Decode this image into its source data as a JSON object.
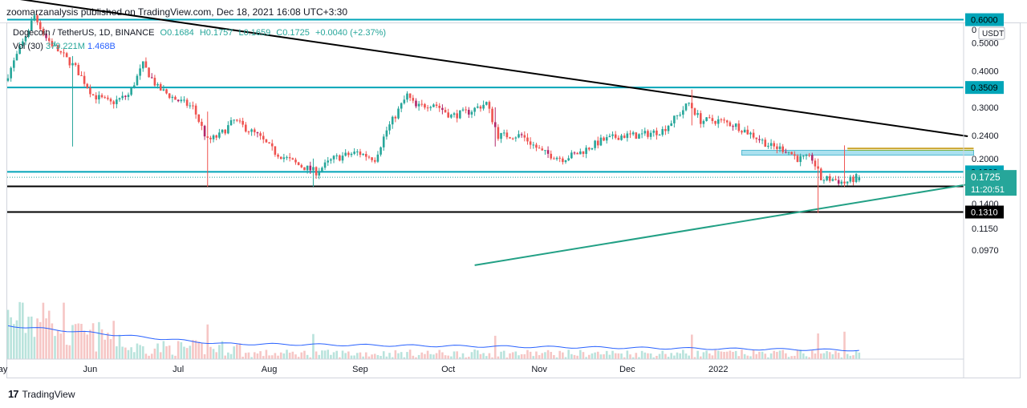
{
  "header": {
    "publisher": "zoomarzanalysis published on TradingView.com, Dec 18, 2021 16:08 UTC+3:30"
  },
  "symbol": {
    "name": "Dogecoin / TetherUS, 1D, BINANCE",
    "open": "O0.1684",
    "high": "H0.1757",
    "low": "L0.1659",
    "close": "C0.1725",
    "change": "+0.0040 (+2.37%)"
  },
  "volume": {
    "label": "Vol (30)",
    "value": "379.221M",
    "ma": "1.468B"
  },
  "footer": {
    "logo": "TradingView"
  },
  "price_scale": {
    "currency": "USDT",
    "top_label": "0",
    "ticks": [
      "0.5000",
      "0.4000",
      "0.3000",
      "0.2400",
      "0.2000",
      "0.1400",
      "0.1150",
      "0.0970"
    ],
    "level_labels": [
      {
        "text": "0.6000",
        "value": 0.6
      },
      {
        "text": "0.3509",
        "value": 0.3509
      },
      {
        "text": "0.1800",
        "value": 0.18
      }
    ],
    "support_label": {
      "text": "0.1310",
      "value": 0.131
    },
    "last_price": {
      "price": "0.1725",
      "countdown": "11:20:51"
    }
  },
  "colors": {
    "up": "#26a69a",
    "down": "#ef5350",
    "down_dark": "#b2276a",
    "teal": "#00a5b8",
    "black": "#000000",
    "green_line": "#22a085",
    "zone": "#8fd8ea",
    "volume_ma": "#2962ff"
  },
  "chart_data": {
    "type": "candlestick",
    "title": "Dogecoin / TetherUS, 1D, BINANCE",
    "x_axis_labels": [
      "May",
      "Jun",
      "Jul",
      "Aug",
      "Sep",
      "Oct",
      "Nov",
      "Dec",
      "2022"
    ],
    "y_scale": "log",
    "y_range": [
      0.086,
      0.9
    ],
    "last": {
      "open": 0.1684,
      "high": 0.1757,
      "low": 0.1659,
      "close": 0.1725
    },
    "anchors": [
      {
        "d": 0,
        "p": 0.37
      },
      {
        "d": 6,
        "p": 0.5
      },
      {
        "d": 10,
        "p": 0.62
      },
      {
        "d": 14,
        "p": 0.52
      },
      {
        "d": 18,
        "p": 0.47
      },
      {
        "d": 24,
        "p": 0.41
      },
      {
        "d": 30,
        "p": 0.33
      },
      {
        "d": 36,
        "p": 0.31
      },
      {
        "d": 42,
        "p": 0.33
      },
      {
        "d": 47,
        "p": 0.42
      },
      {
        "d": 52,
        "p": 0.35
      },
      {
        "d": 58,
        "p": 0.32
      },
      {
        "d": 64,
        "p": 0.3
      },
      {
        "d": 69,
        "p": 0.23
      },
      {
        "d": 73,
        "p": 0.24
      },
      {
        "d": 78,
        "p": 0.27
      },
      {
        "d": 86,
        "p": 0.24
      },
      {
        "d": 92,
        "p": 0.21
      },
      {
        "d": 100,
        "p": 0.19
      },
      {
        "d": 106,
        "p": 0.18
      },
      {
        "d": 112,
        "p": 0.2
      },
      {
        "d": 120,
        "p": 0.21
      },
      {
        "d": 126,
        "p": 0.2
      },
      {
        "d": 130,
        "p": 0.25
      },
      {
        "d": 137,
        "p": 0.33
      },
      {
        "d": 140,
        "p": 0.3
      },
      {
        "d": 146,
        "p": 0.31
      },
      {
        "d": 152,
        "p": 0.28
      },
      {
        "d": 158,
        "p": 0.29
      },
      {
        "d": 164,
        "p": 0.31
      },
      {
        "d": 168,
        "p": 0.24
      },
      {
        "d": 176,
        "p": 0.24
      },
      {
        "d": 183,
        "p": 0.21
      },
      {
        "d": 190,
        "p": 0.2
      },
      {
        "d": 196,
        "p": 0.21
      },
      {
        "d": 203,
        "p": 0.23
      },
      {
        "d": 210,
        "p": 0.24
      },
      {
        "d": 216,
        "p": 0.24
      },
      {
        "d": 224,
        "p": 0.25
      },
      {
        "d": 229,
        "p": 0.28
      },
      {
        "d": 233,
        "p": 0.31
      },
      {
        "d": 237,
        "p": 0.27
      },
      {
        "d": 243,
        "p": 0.27
      },
      {
        "d": 249,
        "p": 0.26
      },
      {
        "d": 255,
        "p": 0.24
      },
      {
        "d": 261,
        "p": 0.22
      },
      {
        "d": 266,
        "p": 0.215
      },
      {
        "d": 270,
        "p": 0.2
      },
      {
        "d": 275,
        "p": 0.2
      },
      {
        "d": 278,
        "p": 0.17
      },
      {
        "d": 282,
        "p": 0.17
      },
      {
        "d": 286,
        "p": 0.165
      },
      {
        "d": 290,
        "p": 0.172
      }
    ],
    "wicks": [
      {
        "d": 22,
        "low": 0.22,
        "high": 0.45
      },
      {
        "d": 68,
        "low": 0.16,
        "high": 0.29
      },
      {
        "d": 104,
        "low": 0.16,
        "high": 0.2
      },
      {
        "d": 166,
        "low": 0.22,
        "high": 0.3
      },
      {
        "d": 233,
        "low": 0.26,
        "high": 0.345
      },
      {
        "d": 276,
        "low": 0.13,
        "high": 0.2
      },
      {
        "d": 285,
        "low": 0.16,
        "high": 0.222
      }
    ],
    "horizontal_levels": [
      {
        "price": 0.6,
        "color": "teal"
      },
      {
        "price": 0.3509,
        "color": "teal"
      },
      {
        "price": 0.18,
        "color": "teal"
      },
      {
        "price": 0.1605,
        "color": "black"
      },
      {
        "price": 0.131,
        "color": "black"
      }
    ],
    "trendlines": [
      {
        "from": {
          "d": -2,
          "p": 0.72
        },
        "to": {
          "d": 327,
          "p": 0.2385
        },
        "color": "black"
      },
      {
        "from": {
          "d": 159,
          "p": 0.086
        },
        "to": {
          "d": 327,
          "p": 0.163
        },
        "color": "green"
      }
    ],
    "resistance_zone": {
      "d_from": 250,
      "d_to": 329,
      "p_low": 0.2055,
      "p_high": 0.2135
    },
    "volume": {
      "ma_start": 0.26,
      "ma_mid": 0.12,
      "ma_end": 0.07
    }
  }
}
